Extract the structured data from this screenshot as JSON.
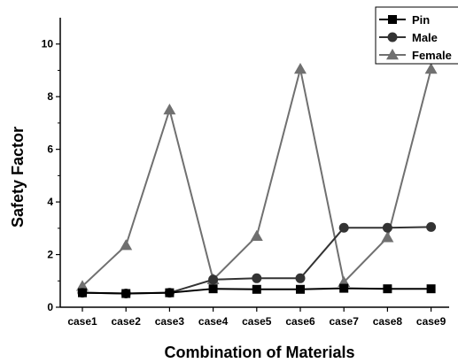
{
  "chart_data": {
    "type": "line",
    "title": "",
    "xlabel": "Combination of Materials",
    "ylabel": "Safety Factor",
    "categories": [
      "case1",
      "case2",
      "case3",
      "case4",
      "case5",
      "case6",
      "case7",
      "case8",
      "case9"
    ],
    "ylim": [
      0,
      11
    ],
    "yticks": [
      0,
      2,
      4,
      6,
      8,
      10
    ],
    "grid": false,
    "legend_position": "top-right",
    "series": [
      {
        "name": "Pin",
        "marker": "square",
        "color": "#000000",
        "values": [
          0.55,
          0.52,
          0.55,
          0.7,
          0.68,
          0.68,
          0.72,
          0.7,
          0.7
        ]
      },
      {
        "name": "Male",
        "marker": "circle",
        "color": "#333333",
        "values": [
          0.55,
          0.52,
          0.55,
          1.05,
          1.1,
          1.1,
          3.02,
          3.02,
          3.05
        ]
      },
      {
        "name": "Female",
        "marker": "triangle",
        "color": "#707070",
        "values": [
          0.8,
          2.35,
          7.5,
          1.05,
          2.7,
          9.05,
          0.95,
          2.65,
          9.05
        ]
      }
    ]
  }
}
